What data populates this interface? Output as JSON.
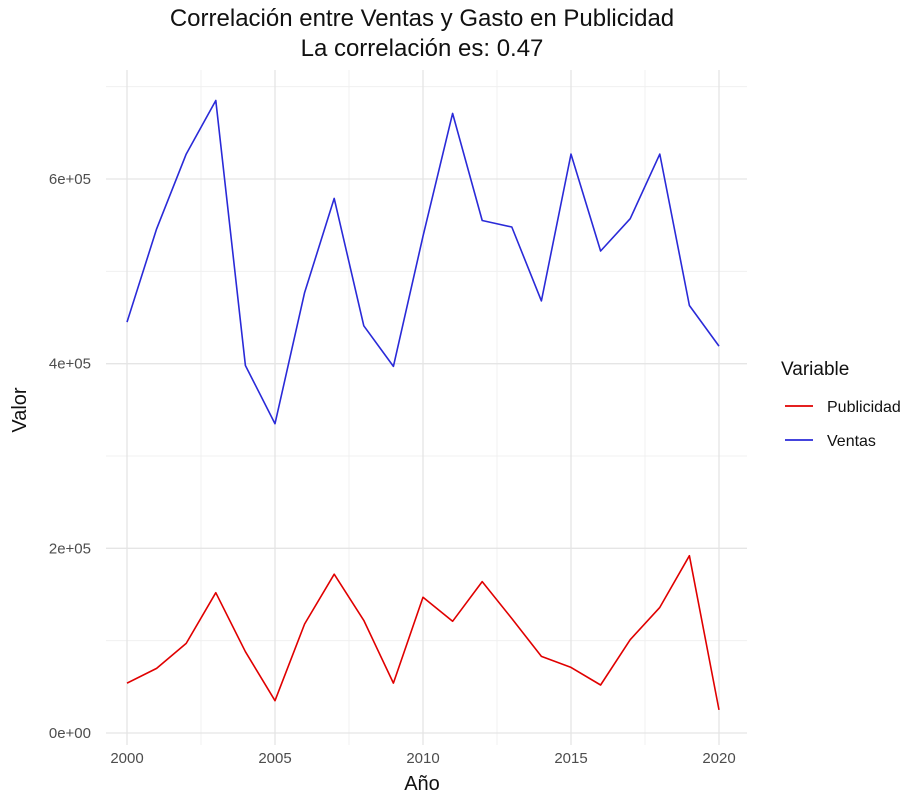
{
  "chart_data": {
    "type": "line",
    "title": "Correlación entre Ventas y Gasto en Publicidad",
    "subtitle": "La correlación es: 0.47",
    "xlabel": "Año",
    "ylabel": "Valor",
    "x": [
      2000,
      2001,
      2002,
      2003,
      2004,
      2005,
      2006,
      2007,
      2008,
      2009,
      2010,
      2011,
      2012,
      2013,
      2014,
      2015,
      2016,
      2017,
      2018,
      2019,
      2020
    ],
    "xlim": [
      1999.9,
      2020.9
    ],
    "ylim": [
      0,
      700000
    ],
    "x_ticks": [
      2000,
      2005,
      2010,
      2015,
      2020
    ],
    "y_ticks": [
      0,
      200000,
      400000,
      600000
    ],
    "x_tick_labels": [
      "2000",
      "2005",
      "2010",
      "2015",
      "2020"
    ],
    "y_tick_labels": [
      "0e+00",
      "2e+05",
      "4e+05",
      "6e+05"
    ],
    "grid": true,
    "legend": {
      "title": "Variable",
      "position": "right"
    },
    "series": [
      {
        "name": "Publicidad",
        "color": "#e00000",
        "values": [
          54000,
          70000,
          97000,
          152000,
          88000,
          35000,
          118000,
          172000,
          122000,
          54000,
          147000,
          121000,
          164000,
          124000,
          83000,
          71000,
          52000,
          101000,
          136000,
          192000,
          25000
        ]
      },
      {
        "name": "Ventas",
        "color": "#2a2ad8",
        "values": [
          445000,
          546000,
          627000,
          685000,
          398000,
          335000,
          477000,
          579000,
          441000,
          397000,
          538000,
          671000,
          555000,
          548000,
          468000,
          627000,
          522000,
          557000,
          627000,
          463000,
          419000
        ]
      }
    ]
  }
}
